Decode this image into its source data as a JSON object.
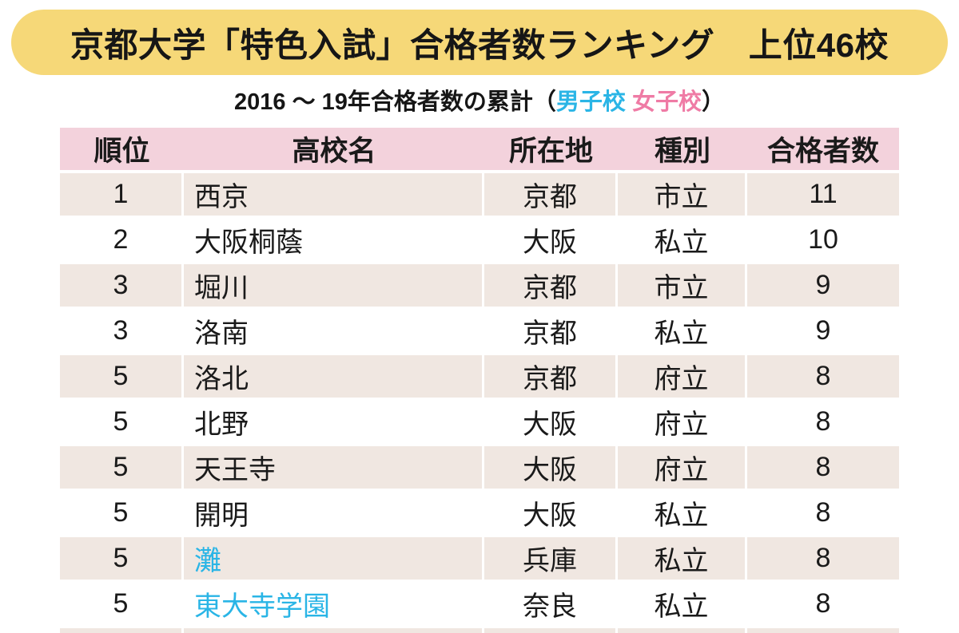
{
  "banner": {
    "title": "京都大学「特色入試」合格者数ランキング　上位46校"
  },
  "subtitle": {
    "prefix": "2016 ～ 19年合格者数の累計（",
    "boys_label": "男子校",
    "separator": " ",
    "girls_label": "女子校",
    "suffix": "）"
  },
  "colors": {
    "banner_yellow": "#f6d878",
    "header_pink": "#f3d2dc",
    "row_beige": "#f0e7e1",
    "boys_blue": "#2ab5e6",
    "girls_pink": "#ef7ba5",
    "text": "#1a1a1a"
  },
  "table": {
    "headers": [
      "順位",
      "高校名",
      "所在地",
      "種別",
      "合格者数"
    ],
    "rows": [
      {
        "rank": "1",
        "school": "西京",
        "boys_school": false,
        "location": "京都",
        "type": "市立",
        "count": "11"
      },
      {
        "rank": "2",
        "school": "大阪桐蔭",
        "boys_school": false,
        "location": "大阪",
        "type": "私立",
        "count": "10"
      },
      {
        "rank": "3",
        "school": "堀川",
        "boys_school": false,
        "location": "京都",
        "type": "市立",
        "count": "9"
      },
      {
        "rank": "3",
        "school": "洛南",
        "boys_school": false,
        "location": "京都",
        "type": "私立",
        "count": "9"
      },
      {
        "rank": "5",
        "school": "洛北",
        "boys_school": false,
        "location": "京都",
        "type": "府立",
        "count": "8"
      },
      {
        "rank": "5",
        "school": "北野",
        "boys_school": false,
        "location": "大阪",
        "type": "府立",
        "count": "8"
      },
      {
        "rank": "5",
        "school": "天王寺",
        "boys_school": false,
        "location": "大阪",
        "type": "府立",
        "count": "8"
      },
      {
        "rank": "5",
        "school": "開明",
        "boys_school": false,
        "location": "大阪",
        "type": "私立",
        "count": "8"
      },
      {
        "rank": "5",
        "school": "灘",
        "boys_school": true,
        "location": "兵庫",
        "type": "私立",
        "count": "8"
      },
      {
        "rank": "5",
        "school": "東大寺学園",
        "boys_school": true,
        "location": "奈良",
        "type": "私立",
        "count": "8"
      }
    ],
    "partial_next_row_visible": true
  },
  "chart_data": {
    "type": "table",
    "title": "京都大学「特色入試」合格者数ランキング　上位46校",
    "subtitle": "2016 ～ 19年合格者数の累計（男子校 女子校）",
    "columns": [
      "順位",
      "高校名",
      "所在地",
      "種別",
      "合格者数"
    ],
    "rows": [
      [
        "1",
        "西京",
        "京都",
        "市立",
        "11"
      ],
      [
        "2",
        "大阪桐蔭",
        "大阪",
        "私立",
        "10"
      ],
      [
        "3",
        "堀川",
        "京都",
        "市立",
        "9"
      ],
      [
        "3",
        "洛南",
        "京都",
        "私立",
        "9"
      ],
      [
        "5",
        "洛北",
        "京都",
        "府立",
        "8"
      ],
      [
        "5",
        "北野",
        "大阪",
        "府立",
        "8"
      ],
      [
        "5",
        "天王寺",
        "大阪",
        "府立",
        "8"
      ],
      [
        "5",
        "開明",
        "大阪",
        "私立",
        "8"
      ],
      [
        "5",
        "灘",
        "兵庫",
        "私立",
        "8"
      ],
      [
        "5",
        "東大寺学園",
        "奈良",
        "私立",
        "8"
      ]
    ],
    "legend": [
      {
        "label": "男子校",
        "color": "#2ab5e6",
        "applies_to": [
          "灘",
          "東大寺学園"
        ]
      },
      {
        "label": "女子校",
        "color": "#ef7ba5",
        "applies_to": []
      }
    ],
    "layout": {
      "striped_rows": "odd ranks beige (#f0e7e1), alternating white",
      "header_bg": "#f3d2dc"
    }
  }
}
